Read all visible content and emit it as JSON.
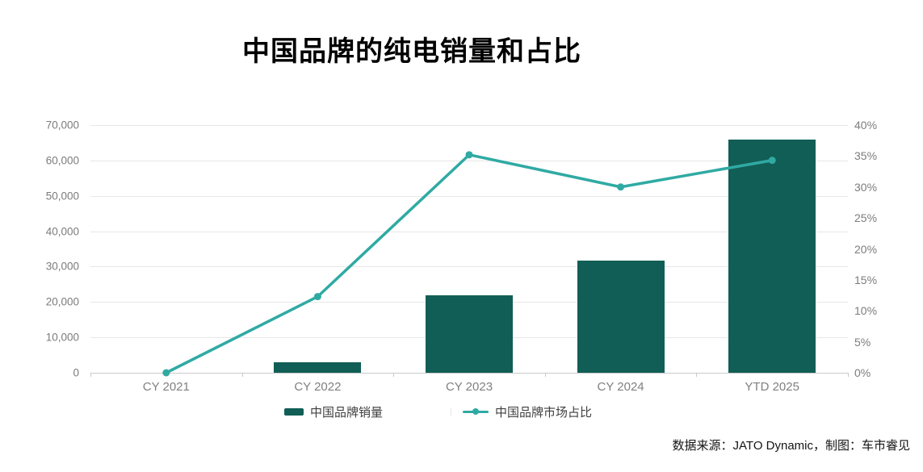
{
  "title": "中国品牌的纯电销量和占比",
  "source_note": "数据来源：JATO Dynamic，制图：车市睿见",
  "colors": {
    "bar": "#115e56",
    "line": "#2faaa3",
    "grid": "#e7e7e7",
    "axis": "#c9c9c9",
    "axis_label": "#7c7c7c",
    "title": "#000000"
  },
  "legend": [
    {
      "label": "中国品牌销量",
      "type": "bar"
    },
    {
      "label": "中国品牌市场占比",
      "type": "line"
    }
  ],
  "chart_data": {
    "type": "bar",
    "subtype": "combo-bar-line-dual-axis",
    "title": "中国品牌的纯电销量和占比",
    "categories": [
      "CY 2021",
      "CY 2022",
      "CY 2023",
      "CY 2024",
      "YTD 2025"
    ],
    "series": [
      {
        "name": "中国品牌销量",
        "type": "bar",
        "axis": "left",
        "values": [
          0,
          3000,
          21800,
          31700,
          66000
        ]
      },
      {
        "name": "中国品牌市场占比",
        "type": "line",
        "axis": "right",
        "values": [
          0,
          12.3,
          35.2,
          30.0,
          34.3
        ],
        "unit": "%"
      }
    ],
    "left_axis": {
      "min": 0,
      "max": 70000,
      "step": 10000,
      "tick_labels": [
        "0",
        "10,000",
        "20,000",
        "30,000",
        "40,000",
        "50,000",
        "60,000",
        "70,000"
      ]
    },
    "right_axis": {
      "min": 0,
      "max": 40,
      "step": 5,
      "tick_labels": [
        "0%",
        "5%",
        "10%",
        "15%",
        "20%",
        "25%",
        "30%",
        "35%",
        "40%"
      ]
    },
    "grid": "horizontal-only",
    "legend_position": "bottom"
  }
}
